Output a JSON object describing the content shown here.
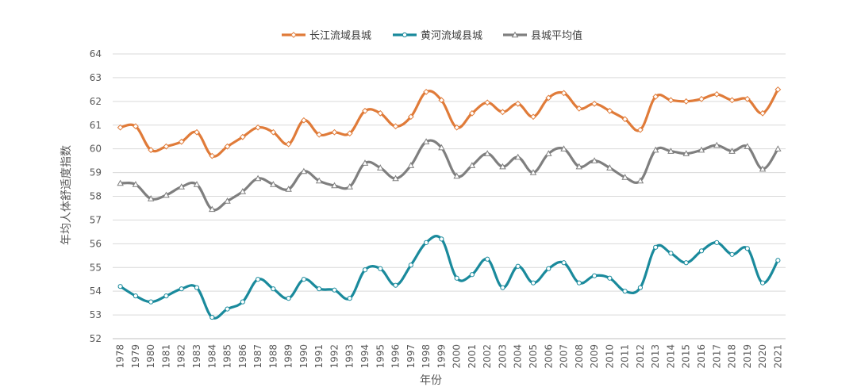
{
  "chart_data": {
    "type": "line",
    "title": "",
    "xlabel": "年份",
    "ylabel": "年均人体舒适度指数",
    "ylim": [
      52,
      64
    ],
    "yticks": [
      52,
      53,
      54,
      55,
      56,
      57,
      58,
      59,
      60,
      61,
      62,
      63,
      64
    ],
    "grid": true,
    "legend_position": "top-center",
    "x": [
      "1978",
      "1979",
      "1980",
      "1981",
      "1982",
      "1983",
      "1984",
      "1985",
      "1986",
      "1987",
      "1988",
      "1989",
      "1990",
      "1991",
      "1992",
      "1993",
      "1994",
      "1995",
      "1996",
      "1997",
      "1998",
      "1999",
      "2000",
      "2001",
      "2002",
      "2003",
      "2004",
      "2005",
      "2006",
      "2007",
      "2008",
      "2009",
      "2010",
      "2011",
      "2012",
      "2013",
      "2014",
      "2015",
      "2016",
      "2017",
      "2018",
      "2019",
      "2020",
      "2021"
    ],
    "series": [
      {
        "name": "长江流域县城",
        "color": "#E07B39",
        "marker": "diamond",
        "values": [
          60.9,
          60.95,
          59.95,
          60.1,
          60.3,
          60.7,
          59.7,
          60.1,
          60.5,
          60.9,
          60.7,
          60.2,
          61.2,
          60.6,
          60.7,
          60.65,
          61.6,
          61.5,
          60.95,
          61.35,
          62.4,
          62.05,
          60.9,
          61.5,
          61.95,
          61.55,
          61.9,
          61.35,
          62.15,
          62.35,
          61.7,
          61.9,
          61.6,
          61.25,
          60.8,
          62.2,
          62.05,
          62.0,
          62.1,
          62.3,
          62.05,
          62.1,
          61.5,
          62.5
        ]
      },
      {
        "name": "黄河流域县城",
        "color": "#1A8A9C",
        "marker": "circle",
        "values": [
          54.2,
          53.8,
          53.55,
          53.8,
          54.1,
          54.15,
          52.9,
          53.25,
          53.55,
          54.5,
          54.1,
          53.7,
          54.5,
          54.1,
          54.05,
          53.7,
          54.9,
          54.95,
          54.25,
          55.1,
          56.05,
          56.2,
          54.55,
          54.7,
          55.35,
          54.15,
          55.05,
          54.35,
          54.95,
          55.2,
          54.35,
          54.65,
          54.55,
          54.0,
          54.15,
          55.85,
          55.6,
          55.2,
          55.7,
          56.05,
          55.55,
          55.8,
          54.35,
          55.3
        ]
      },
      {
        "name": "县城平均值",
        "color": "#7F7F7F",
        "marker": "triangle",
        "values": [
          58.55,
          58.5,
          57.9,
          58.05,
          58.4,
          58.5,
          57.45,
          57.8,
          58.2,
          58.75,
          58.5,
          58.3,
          59.05,
          58.65,
          58.45,
          58.4,
          59.4,
          59.2,
          58.75,
          59.3,
          60.3,
          60.05,
          58.85,
          59.3,
          59.8,
          59.25,
          59.65,
          59.0,
          59.8,
          60.0,
          59.25,
          59.5,
          59.2,
          58.8,
          58.65,
          59.95,
          59.9,
          59.8,
          59.95,
          60.15,
          59.9,
          60.1,
          59.15,
          60.0
        ]
      }
    ]
  }
}
